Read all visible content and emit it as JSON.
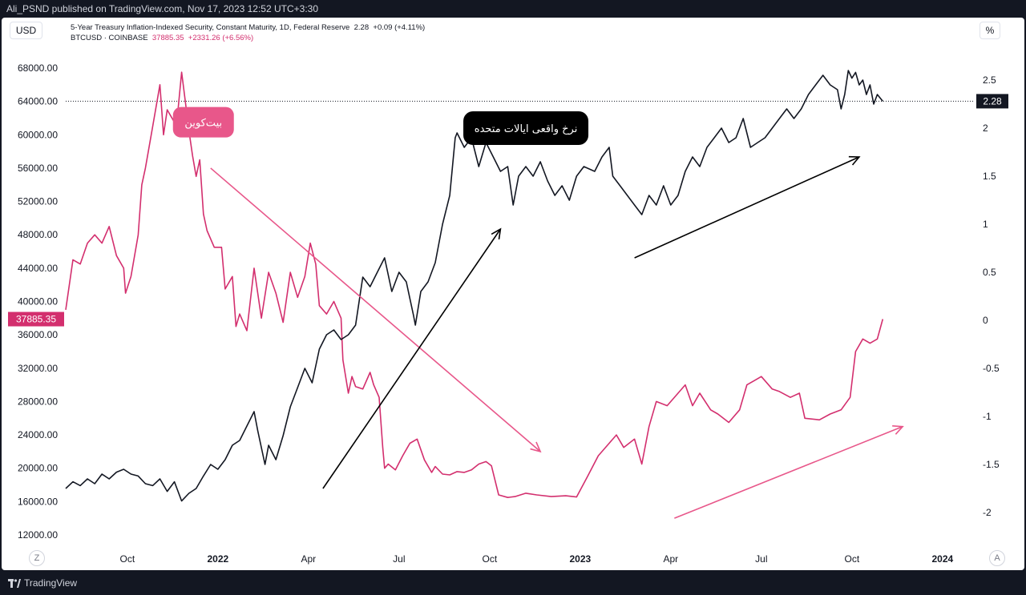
{
  "header": {
    "publisher_text": "Ali_PSND published on TradingView.com, Nov 17, 2023 12:52 UTC+3:30"
  },
  "toolbar": {
    "currency_label": "USD",
    "percent_label": "%",
    "zoom_label": "Z",
    "auto_label": "A"
  },
  "legend": {
    "line1_text": "5-Year Treasury Inflation-Indexed Security, Constant Maturity, 1D, Federal Reserve",
    "line1_value": "2.28",
    "line1_change": "+0.09 (+4.11%)",
    "line2_text": "BTCUSD · COINBASE",
    "line2_value": "37885.35",
    "line2_change": "+2331.26 (+6.56%)"
  },
  "footer": {
    "brand": "TradingView"
  },
  "colors": {
    "btc": "#d32f6e",
    "tips": "#131722",
    "btc_arrow": "#e8578a",
    "background": "#ffffff"
  },
  "chart_data": {
    "type": "line",
    "x_tick_labels": [
      "Oct",
      "2022",
      "Apr",
      "Jul",
      "Oct",
      "2023",
      "Apr",
      "Jul",
      "Oct",
      "2024"
    ],
    "x_tick_times": [
      2021.75,
      2022.0,
      2022.25,
      2022.5,
      2022.75,
      2023.0,
      2023.25,
      2023.5,
      2023.75,
      2024.0
    ],
    "xlim": [
      2021.58,
      2024.08
    ],
    "left_axis": {
      "unit": "USD",
      "ylim": [
        10000,
        70000
      ],
      "ticks": [
        "68000.00",
        "64000.00",
        "60000.00",
        "56000.00",
        "52000.00",
        "48000.00",
        "44000.00",
        "40000.00",
        "36000.00",
        "32000.00",
        "28000.00",
        "24000.00",
        "20000.00",
        "16000.00",
        "12000.00"
      ],
      "tick_values": [
        68000,
        64000,
        60000,
        56000,
        52000,
        48000,
        44000,
        40000,
        36000,
        32000,
        28000,
        24000,
        20000,
        16000,
        12000
      ],
      "last_value_label": "37885.35"
    },
    "right_axis": {
      "unit": "%",
      "ylim": [
        -2.25,
        2.75
      ],
      "ticks": [
        "2.5",
        "2",
        "1.5",
        "1",
        "0.5",
        "0",
        "-0.5",
        "-1",
        "-1.5",
        "-2"
      ],
      "tick_values": [
        2.5,
        2,
        1.5,
        1,
        0.5,
        0,
        -0.5,
        -1,
        -1.5,
        -2
      ],
      "last_value_label": "2.28"
    },
    "series": [
      {
        "name": "BTCUSD · COINBASE",
        "axis": "left",
        "points": [
          [
            2021.58,
            39000
          ],
          [
            2021.6,
            45000
          ],
          [
            2021.62,
            44500
          ],
          [
            2021.64,
            47000
          ],
          [
            2021.66,
            48000
          ],
          [
            2021.68,
            47000
          ],
          [
            2021.7,
            49000
          ],
          [
            2021.72,
            45500
          ],
          [
            2021.74,
            44000
          ],
          [
            2021.745,
            41000
          ],
          [
            2021.76,
            43000
          ],
          [
            2021.78,
            48000
          ],
          [
            2021.79,
            54000
          ],
          [
            2021.8,
            56000
          ],
          [
            2021.82,
            61000
          ],
          [
            2021.84,
            66000
          ],
          [
            2021.85,
            60000
          ],
          [
            2021.86,
            63000
          ],
          [
            2021.88,
            61500
          ],
          [
            2021.89,
            63000
          ],
          [
            2021.9,
            67500
          ],
          [
            2021.91,
            64000
          ],
          [
            2021.92,
            60500
          ],
          [
            2021.93,
            57500
          ],
          [
            2021.94,
            55000
          ],
          [
            2021.95,
            57000
          ],
          [
            2021.96,
            50500
          ],
          [
            2021.97,
            48500
          ],
          [
            2021.99,
            46500
          ],
          [
            2022.01,
            46500
          ],
          [
            2022.02,
            41500
          ],
          [
            2022.04,
            43000
          ],
          [
            2022.05,
            37000
          ],
          [
            2022.06,
            38500
          ],
          [
            2022.08,
            36500
          ],
          [
            2022.1,
            44000
          ],
          [
            2022.12,
            38000
          ],
          [
            2022.14,
            43500
          ],
          [
            2022.16,
            41000
          ],
          [
            2022.18,
            37500
          ],
          [
            2022.2,
            43500
          ],
          [
            2022.22,
            40500
          ],
          [
            2022.24,
            43000
          ],
          [
            2022.255,
            47000
          ],
          [
            2022.27,
            44500
          ],
          [
            2022.28,
            39500
          ],
          [
            2022.3,
            38500
          ],
          [
            2022.32,
            40000
          ],
          [
            2022.34,
            38000
          ],
          [
            2022.345,
            33000
          ],
          [
            2022.36,
            29000
          ],
          [
            2022.37,
            31000
          ],
          [
            2022.38,
            29800
          ],
          [
            2022.4,
            29500
          ],
          [
            2022.42,
            31500
          ],
          [
            2022.43,
            30000
          ],
          [
            2022.445,
            28500
          ],
          [
            2022.455,
            22500
          ],
          [
            2022.46,
            20000
          ],
          [
            2022.47,
            20500
          ],
          [
            2022.49,
            19800
          ],
          [
            2022.51,
            21500
          ],
          [
            2022.53,
            23000
          ],
          [
            2022.55,
            23500
          ],
          [
            2022.57,
            21000
          ],
          [
            2022.59,
            19500
          ],
          [
            2022.6,
            20200
          ],
          [
            2022.62,
            19300
          ],
          [
            2022.64,
            19200
          ],
          [
            2022.66,
            19600
          ],
          [
            2022.68,
            19500
          ],
          [
            2022.7,
            19800
          ],
          [
            2022.72,
            20500
          ],
          [
            2022.74,
            20800
          ],
          [
            2022.755,
            20300
          ],
          [
            2022.775,
            16800
          ],
          [
            2022.8,
            16500
          ],
          [
            2022.82,
            16600
          ],
          [
            2022.85,
            17000
          ],
          [
            2022.88,
            16800
          ],
          [
            2022.92,
            16600
          ],
          [
            2022.96,
            16700
          ],
          [
            2022.99,
            16550
          ],
          [
            2023.02,
            19000
          ],
          [
            2023.05,
            21500
          ],
          [
            2023.08,
            23000
          ],
          [
            2023.1,
            24000
          ],
          [
            2023.12,
            22500
          ],
          [
            2023.15,
            23500
          ],
          [
            2023.17,
            20500
          ],
          [
            2023.19,
            25000
          ],
          [
            2023.21,
            28000
          ],
          [
            2023.24,
            27500
          ],
          [
            2023.27,
            29000
          ],
          [
            2023.29,
            30000
          ],
          [
            2023.31,
            27500
          ],
          [
            2023.33,
            29000
          ],
          [
            2023.36,
            27000
          ],
          [
            2023.38,
            26500
          ],
          [
            2023.41,
            25500
          ],
          [
            2023.44,
            27000
          ],
          [
            2023.46,
            30000
          ],
          [
            2023.48,
            30500
          ],
          [
            2023.5,
            31000
          ],
          [
            2023.53,
            29500
          ],
          [
            2023.55,
            29200
          ],
          [
            2023.58,
            28500
          ],
          [
            2023.605,
            29000
          ],
          [
            2023.62,
            26000
          ],
          [
            2023.66,
            25800
          ],
          [
            2023.69,
            26500
          ],
          [
            2023.72,
            27000
          ],
          [
            2023.745,
            28500
          ],
          [
            2023.76,
            34000
          ],
          [
            2023.78,
            35500
          ],
          [
            2023.8,
            35000
          ],
          [
            2023.82,
            35500
          ],
          [
            2023.835,
            37885
          ]
        ]
      },
      {
        "name": "5-Year Treasury Inflation-Indexed Security, Constant Maturity, 1D, Federal Reserve",
        "axis": "right",
        "points": [
          [
            2021.58,
            -1.75
          ],
          [
            2021.6,
            -1.68
          ],
          [
            2021.62,
            -1.72
          ],
          [
            2021.64,
            -1.65
          ],
          [
            2021.66,
            -1.7
          ],
          [
            2021.68,
            -1.6
          ],
          [
            2021.7,
            -1.65
          ],
          [
            2021.72,
            -1.58
          ],
          [
            2021.74,
            -1.55
          ],
          [
            2021.76,
            -1.6
          ],
          [
            2021.78,
            -1.62
          ],
          [
            2021.8,
            -1.7
          ],
          [
            2021.82,
            -1.72
          ],
          [
            2021.84,
            -1.65
          ],
          [
            2021.86,
            -1.78
          ],
          [
            2021.88,
            -1.68
          ],
          [
            2021.9,
            -1.88
          ],
          [
            2021.92,
            -1.8
          ],
          [
            2021.94,
            -1.75
          ],
          [
            2021.96,
            -1.62
          ],
          [
            2021.98,
            -1.5
          ],
          [
            2022.0,
            -1.55
          ],
          [
            2022.02,
            -1.45
          ],
          [
            2022.04,
            -1.3
          ],
          [
            2022.06,
            -1.25
          ],
          [
            2022.08,
            -1.1
          ],
          [
            2022.1,
            -0.95
          ],
          [
            2022.11,
            -1.15
          ],
          [
            2022.13,
            -1.5
          ],
          [
            2022.14,
            -1.3
          ],
          [
            2022.16,
            -1.45
          ],
          [
            2022.18,
            -1.2
          ],
          [
            2022.2,
            -0.9
          ],
          [
            2022.22,
            -0.7
          ],
          [
            2022.24,
            -0.5
          ],
          [
            2022.26,
            -0.65
          ],
          [
            2022.28,
            -0.3
          ],
          [
            2022.3,
            -0.15
          ],
          [
            2022.32,
            -0.1
          ],
          [
            2022.34,
            -0.2
          ],
          [
            2022.36,
            -0.15
          ],
          [
            2022.38,
            -0.05
          ],
          [
            2022.4,
            0.45
          ],
          [
            2022.42,
            0.35
          ],
          [
            2022.44,
            0.5
          ],
          [
            2022.46,
            0.65
          ],
          [
            2022.48,
            0.3
          ],
          [
            2022.5,
            0.5
          ],
          [
            2022.52,
            0.4
          ],
          [
            2022.54,
            0.05
          ],
          [
            2022.545,
            -0.05
          ],
          [
            2022.56,
            0.3
          ],
          [
            2022.58,
            0.4
          ],
          [
            2022.6,
            0.6
          ],
          [
            2022.62,
            1.0
          ],
          [
            2022.64,
            1.3
          ],
          [
            2022.655,
            1.9
          ],
          [
            2022.66,
            1.95
          ],
          [
            2022.68,
            1.8
          ],
          [
            2022.7,
            1.9
          ],
          [
            2022.72,
            1.6
          ],
          [
            2022.74,
            1.85
          ],
          [
            2022.76,
            1.7
          ],
          [
            2022.78,
            1.55
          ],
          [
            2022.8,
            1.6
          ],
          [
            2022.815,
            1.2
          ],
          [
            2022.83,
            1.5
          ],
          [
            2022.85,
            1.6
          ],
          [
            2022.87,
            1.5
          ],
          [
            2022.89,
            1.65
          ],
          [
            2022.91,
            1.45
          ],
          [
            2022.93,
            1.3
          ],
          [
            2022.95,
            1.4
          ],
          [
            2022.97,
            1.25
          ],
          [
            2022.99,
            1.5
          ],
          [
            2023.01,
            1.6
          ],
          [
            2023.04,
            1.55
          ],
          [
            2023.06,
            1.7
          ],
          [
            2023.08,
            1.8
          ],
          [
            2023.09,
            1.5
          ],
          [
            2023.11,
            1.4
          ],
          [
            2023.13,
            1.3
          ],
          [
            2023.15,
            1.2
          ],
          [
            2023.17,
            1.1
          ],
          [
            2023.19,
            1.3
          ],
          [
            2023.21,
            1.2
          ],
          [
            2023.23,
            1.4
          ],
          [
            2023.25,
            1.2
          ],
          [
            2023.27,
            1.3
          ],
          [
            2023.29,
            1.55
          ],
          [
            2023.31,
            1.7
          ],
          [
            2023.33,
            1.6
          ],
          [
            2023.35,
            1.8
          ],
          [
            2023.37,
            1.9
          ],
          [
            2023.39,
            2.0
          ],
          [
            2023.41,
            1.85
          ],
          [
            2023.43,
            1.9
          ],
          [
            2023.45,
            2.1
          ],
          [
            2023.47,
            1.8
          ],
          [
            2023.49,
            1.85
          ],
          [
            2023.51,
            1.9
          ],
          [
            2023.53,
            2.0
          ],
          [
            2023.55,
            2.1
          ],
          [
            2023.57,
            2.2
          ],
          [
            2023.59,
            2.1
          ],
          [
            2023.61,
            2.2
          ],
          [
            2023.63,
            2.35
          ],
          [
            2023.65,
            2.45
          ],
          [
            2023.67,
            2.55
          ],
          [
            2023.69,
            2.45
          ],
          [
            2023.71,
            2.4
          ],
          [
            2023.72,
            2.2
          ],
          [
            2023.73,
            2.35
          ],
          [
            2023.74,
            2.6
          ],
          [
            2023.75,
            2.52
          ],
          [
            2023.76,
            2.58
          ],
          [
            2023.77,
            2.45
          ],
          [
            2023.78,
            2.5
          ],
          [
            2023.79,
            2.35
          ],
          [
            2023.8,
            2.45
          ],
          [
            2023.81,
            2.25
          ],
          [
            2023.82,
            2.35
          ],
          [
            2023.835,
            2.28
          ]
        ]
      }
    ],
    "annotations": [
      {
        "text": "بیت‌کوین",
        "style": "label",
        "color": "#e8578a"
      },
      {
        "text": "نرخ واقعی ایالات متحده",
        "style": "label",
        "color": "#000000"
      }
    ],
    "arrows": [
      {
        "series": "BTCUSD · COINBASE",
        "color": "#e8578a",
        "from": [
          2021.98,
          56000
        ],
        "to": [
          2022.89,
          22000
        ]
      },
      {
        "series": "5-Year Treasury Inflation-Indexed Security, Constant Maturity, 1D, Federal Reserve",
        "color": "#000000",
        "from": [
          2022.29,
          -1.75
        ],
        "to": [
          2022.78,
          0.95
        ]
      },
      {
        "series": "5-Year Treasury Inflation-Indexed Security, Constant Maturity, 1D, Federal Reserve",
        "color": "#000000",
        "from": [
          2023.15,
          0.65
        ],
        "to": [
          2023.77,
          1.7
        ]
      },
      {
        "series": "BTCUSD · COINBASE",
        "color": "#e8578a",
        "from": [
          2023.26,
          14000
        ],
        "to": [
          2023.89,
          25000
        ]
      }
    ]
  }
}
